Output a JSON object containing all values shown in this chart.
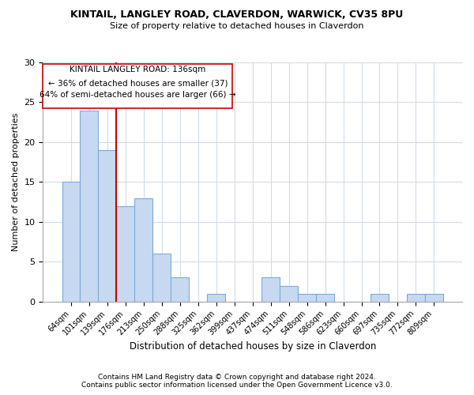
{
  "title": "KINTAIL, LANGLEY ROAD, CLAVERDON, WARWICK, CV35 8PU",
  "subtitle": "Size of property relative to detached houses in Claverdon",
  "xlabel": "Distribution of detached houses by size in Claverdon",
  "ylabel": "Number of detached properties",
  "footer_line1": "Contains HM Land Registry data © Crown copyright and database right 2024.",
  "footer_line2": "Contains public sector information licensed under the Open Government Licence v3.0.",
  "bin_labels": [
    "64sqm",
    "101sqm",
    "139sqm",
    "176sqm",
    "213sqm",
    "250sqm",
    "288sqm",
    "325sqm",
    "362sqm",
    "399sqm",
    "437sqm",
    "474sqm",
    "511sqm",
    "548sqm",
    "586sqm",
    "623sqm",
    "660sqm",
    "697sqm",
    "735sqm",
    "772sqm",
    "809sqm"
  ],
  "bar_heights": [
    15,
    24,
    19,
    12,
    13,
    6,
    3,
    0,
    1,
    0,
    0,
    3,
    2,
    1,
    1,
    0,
    0,
    1,
    0,
    1,
    1
  ],
  "bar_color": "#c6d9f0",
  "bar_edge_color": "#7aabdb",
  "vline_color": "#cc0000",
  "ylim": [
    0,
    30
  ],
  "yticks": [
    0,
    5,
    10,
    15,
    20,
    25,
    30
  ],
  "annotation_title": "KINTAIL LANGLEY ROAD: 136sqm",
  "annotation_line2": "← 36% of detached houses are smaller (37)",
  "annotation_line3": "64% of semi-detached houses are larger (66) →"
}
